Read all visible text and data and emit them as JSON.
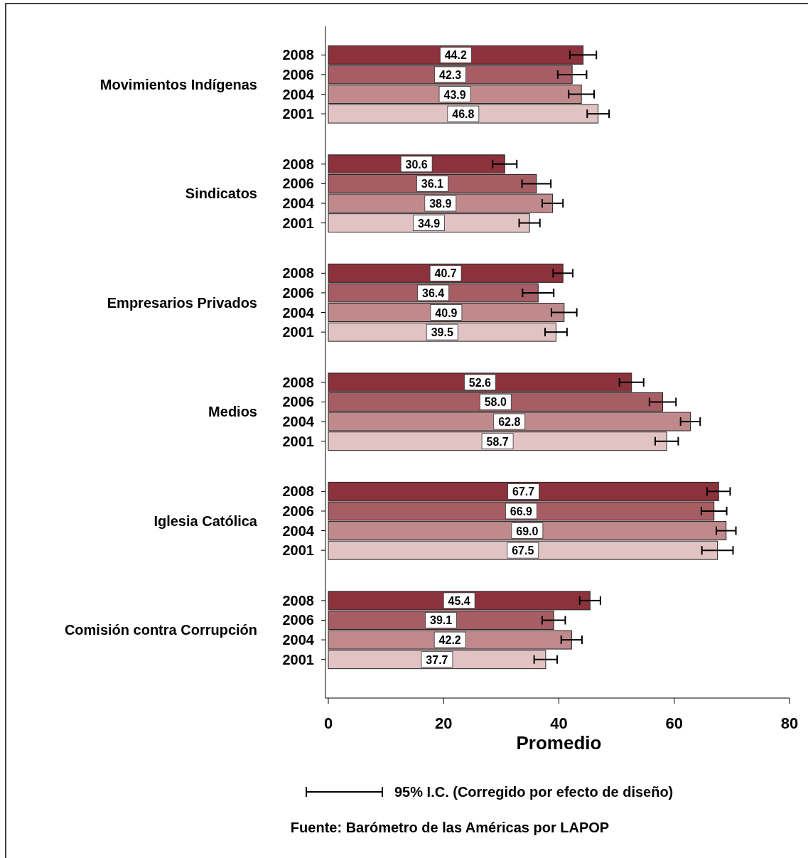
{
  "chart_data": {
    "type": "bar",
    "orientation": "horizontal",
    "xlabel": "Promedio",
    "categories": [
      "Movimientos Indígenas",
      "Sindicatos",
      "Empresarios Privados",
      "Medios",
      "Iglesia Católica",
      "Comisión contra Corrupción"
    ],
    "series": [
      {
        "name": "2008",
        "color": "#8b323c",
        "values": [
          44.2,
          30.6,
          40.7,
          52.6,
          67.7,
          45.4
        ],
        "value_labels": [
          "44.2",
          "30.6",
          "40.7",
          "52.6",
          "67.7",
          "45.4"
        ],
        "errors": [
          2.3,
          2.1,
          1.7,
          2.1,
          2.0,
          1.8
        ]
      },
      {
        "name": "2006",
        "color": "#a65d63",
        "values": [
          42.3,
          36.1,
          36.4,
          58.0,
          66.9,
          39.1
        ],
        "value_labels": [
          "42.3",
          "36.1",
          "36.4",
          "58.0",
          "66.9",
          "39.1"
        ],
        "errors": [
          2.5,
          2.5,
          2.7,
          2.3,
          2.2,
          2.0
        ]
      },
      {
        "name": "2004",
        "color": "#c08a8c",
        "values": [
          43.9,
          38.9,
          40.9,
          62.8,
          69.0,
          42.2
        ],
        "value_labels": [
          "43.9",
          "38.9",
          "40.9",
          "62.8",
          "69.0",
          "42.2"
        ],
        "errors": [
          2.2,
          1.8,
          2.2,
          1.7,
          1.7,
          1.8
        ]
      },
      {
        "name": "2001",
        "color": "#e2c3c4",
        "values": [
          46.8,
          34.9,
          39.5,
          58.7,
          67.5,
          37.7
        ],
        "value_labels": [
          "46.8",
          "34.9",
          "39.5",
          "58.7",
          "67.5",
          "37.7"
        ],
        "errors": [
          1.9,
          1.8,
          1.9,
          2.0,
          2.7,
          2.0
        ]
      }
    ],
    "xlim": [
      0,
      80
    ],
    "xticks": [
      0,
      20,
      40,
      60,
      80
    ],
    "grid": false,
    "annotations": [
      "95% I.C. (Corregido por efecto de diseño)",
      "Fuente: Barómetro de las Américas por LAPOP"
    ]
  }
}
